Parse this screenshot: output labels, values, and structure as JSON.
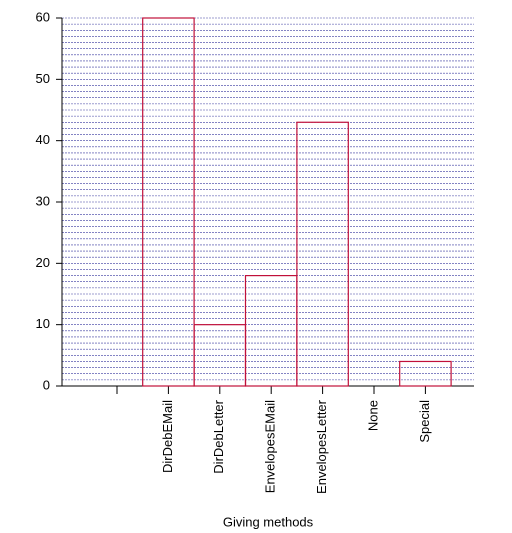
{
  "chart_data": {
    "type": "bar",
    "x_label": "Giving methods",
    "categories": [
      null,
      "DirDebEMail",
      "DirDebLetter",
      "EnvelopesEMail",
      "EnvelopesLetter",
      "None",
      "Special"
    ],
    "values": [
      null,
      60,
      10,
      18,
      43,
      0,
      4
    ],
    "color": "#c0103a",
    "ylim": [
      0,
      60
    ],
    "yticks": [
      0,
      10,
      20,
      30,
      40,
      50,
      60
    ],
    "minor_yticks": [
      1,
      2,
      3,
      4,
      5,
      6,
      7,
      8,
      9,
      11,
      12,
      13,
      14,
      15,
      16,
      17,
      18,
      19,
      21,
      22,
      23,
      24,
      25,
      26,
      27,
      28,
      29,
      31,
      32,
      33,
      34,
      35,
      36,
      37,
      38,
      39,
      41,
      42,
      43,
      44,
      45,
      46,
      47,
      48,
      49,
      51,
      52,
      53,
      54,
      55,
      56,
      57,
      58,
      59
    ],
    "grid": true,
    "grid_color": "#3a3aa0"
  }
}
